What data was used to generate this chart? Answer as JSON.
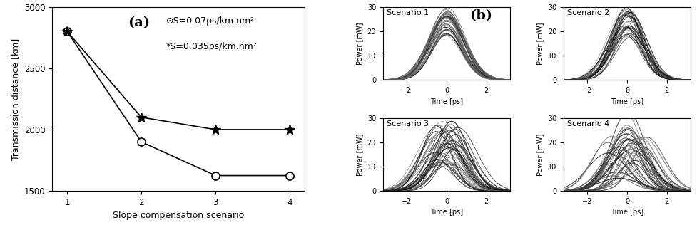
{
  "line1_x": [
    1,
    2,
    3,
    4
  ],
  "line1_y": [
    2800,
    1900,
    1625,
    1625
  ],
  "line2_x": [
    1,
    2,
    3,
    4
  ],
  "line2_y": [
    2800,
    2100,
    2000,
    2000
  ],
  "xlabel": "Slope compensation scenario",
  "ylabel": "Transmission distance [km]",
  "ylim": [
    1500,
    3000
  ],
  "xlim": [
    0.8,
    4.2
  ],
  "yticks": [
    1500,
    2000,
    2500,
    3000
  ],
  "xticks": [
    1,
    2,
    3,
    4
  ],
  "label_a": "(a)",
  "label_b": "(b)",
  "legend_circle": "⊙S=0.07ps/km.nm²",
  "legend_star": "*S=0.035ps/km.nm²",
  "scenario_labels": [
    "Scenario 1",
    "Scenario 2",
    "Scenario 3",
    "Scenario 4"
  ],
  "eye_xlabel": "Time [ps]",
  "eye_ylabel": "Power [mW]",
  "eye_xlim": [
    -3.2,
    3.2
  ],
  "eye_ylim": [
    0,
    30
  ],
  "eye_yticks": [
    0,
    10,
    20,
    30
  ],
  "eye_xticks": [
    -2,
    0,
    2
  ],
  "bg_color": "#ffffff"
}
